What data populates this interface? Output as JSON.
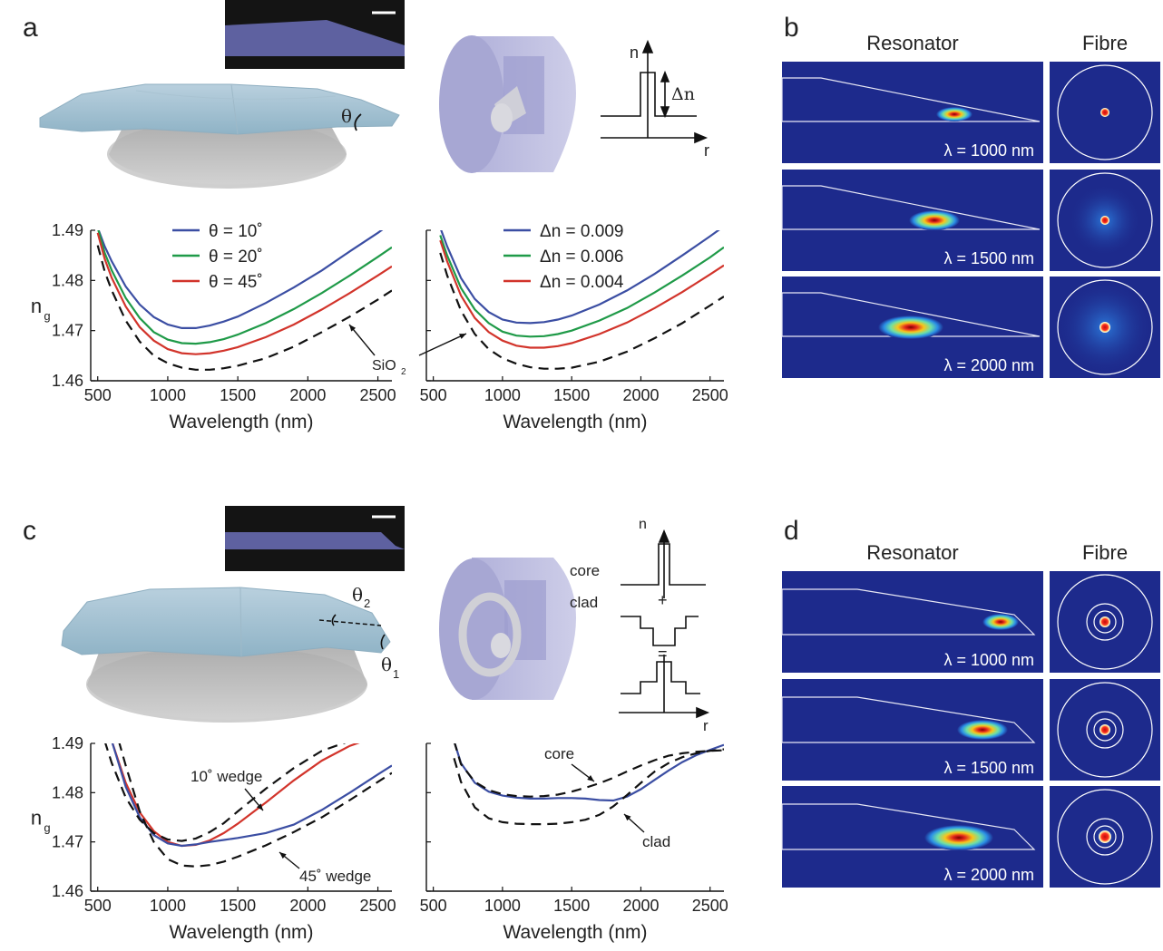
{
  "panels": {
    "a": "a",
    "b": "b",
    "c": "c",
    "d": "d"
  },
  "labels": {
    "theta": "θ",
    "theta2": "θ",
    "theta2_sub": "2",
    "theta1": "θ",
    "theta1_sub": "1",
    "n_axis": "n",
    "r_axis": "r",
    "delta_n": "Δn",
    "core": "core",
    "clad": "clad",
    "plus": "+",
    "equals": "=",
    "resonator": "Resonator",
    "fibre": "Fibre",
    "sio2": "SiO",
    "sio2_sub": "2",
    "wedge10": "10˚ wedge",
    "wedge45": "45˚ wedge",
    "core_curve": "core",
    "clad_curve": "clad",
    "ng": "n",
    "ng_sub": "g",
    "lambda": [
      "λ = 1000 nm",
      "λ = 1500 nm",
      "λ = 2000 nm"
    ]
  },
  "colors": {
    "blue": "#3b4ea3",
    "green": "#1f9a48",
    "red": "#d2342b",
    "mode_bg": "#1d2a8c"
  },
  "chart_data": [
    {
      "panel": "a-left",
      "type": "line",
      "xlabel": "Wavelength (nm)",
      "ylabel": "n_g",
      "xlim": [
        450,
        2600
      ],
      "ylim": [
        1.46,
        1.49
      ],
      "xticks": [
        500,
        1000,
        1500,
        2000,
        2500
      ],
      "yticks": [
        1.46,
        1.47,
        1.48,
        1.49
      ],
      "series": [
        {
          "name": "θ = 10˚",
          "color": "#3b4ea3",
          "dash": false,
          "x": [
            500,
            550,
            600,
            700,
            800,
            900,
            1000,
            1100,
            1200,
            1300,
            1400,
            1500,
            1700,
            1900,
            2100,
            2300,
            2500,
            2600
          ],
          "y": [
            1.4905,
            1.4868,
            1.4838,
            1.4788,
            1.4752,
            1.4727,
            1.4712,
            1.4705,
            1.4705,
            1.471,
            1.4718,
            1.4728,
            1.4755,
            1.4786,
            1.482,
            1.4858,
            1.4895,
            1.4915
          ]
        },
        {
          "name": "θ = 20˚",
          "color": "#1f9a48",
          "dash": false,
          "x": [
            500,
            550,
            600,
            700,
            800,
            900,
            1000,
            1100,
            1200,
            1300,
            1400,
            1500,
            1700,
            1900,
            2100,
            2300,
            2500,
            2600
          ],
          "y": [
            1.4905,
            1.4855,
            1.482,
            1.4765,
            1.4725,
            1.4697,
            1.4682,
            1.4675,
            1.4674,
            1.4677,
            1.4683,
            1.4692,
            1.4715,
            1.4743,
            1.4775,
            1.481,
            1.4847,
            1.4866
          ]
        },
        {
          "name": "θ = 45˚",
          "color": "#d2342b",
          "dash": false,
          "x": [
            500,
            550,
            600,
            700,
            800,
            900,
            1000,
            1100,
            1200,
            1300,
            1400,
            1500,
            1700,
            1900,
            2100,
            2300,
            2500,
            2600
          ],
          "y": [
            1.4895,
            1.4843,
            1.4805,
            1.4748,
            1.4707,
            1.468,
            1.4663,
            1.4655,
            1.4653,
            1.4655,
            1.466,
            1.4667,
            1.4687,
            1.4712,
            1.4742,
            1.4775,
            1.481,
            1.4828
          ]
        },
        {
          "name": "",
          "color": "#111111",
          "dash": true,
          "x": [
            500,
            550,
            600,
            700,
            800,
            900,
            1000,
            1100,
            1200,
            1300,
            1400,
            1500,
            1700,
            1900,
            2100,
            2300,
            2500,
            2600
          ],
          "y": [
            1.487,
            1.4818,
            1.478,
            1.472,
            1.4678,
            1.465,
            1.4635,
            1.4626,
            1.4622,
            1.4622,
            1.4625,
            1.463,
            1.4645,
            1.4668,
            1.4697,
            1.4728,
            1.4762,
            1.478
          ]
        }
      ],
      "legend_position": "top-left"
    },
    {
      "panel": "a-right",
      "type": "line",
      "xlabel": "Wavelength (nm)",
      "ylabel": "",
      "xlim": [
        450,
        2600
      ],
      "ylim": [
        1.46,
        1.49
      ],
      "xticks": [
        500,
        1000,
        1500,
        2000,
        2500
      ],
      "series": [
        {
          "name": "Δn = 0.009",
          "color": "#3b4ea3",
          "dash": false,
          "x": [
            550,
            600,
            700,
            800,
            900,
            1000,
            1100,
            1200,
            1300,
            1400,
            1500,
            1700,
            1900,
            2100,
            2300,
            2500,
            2600
          ],
          "y": [
            1.4905,
            1.4868,
            1.4805,
            1.4763,
            1.4737,
            1.4722,
            1.4716,
            1.4715,
            1.4717,
            1.4722,
            1.473,
            1.4752,
            1.478,
            1.4813,
            1.485,
            1.4888,
            1.4908
          ]
        },
        {
          "name": "Δn = 0.006",
          "color": "#1f9a48",
          "dash": false,
          "x": [
            550,
            600,
            700,
            800,
            900,
            1000,
            1100,
            1200,
            1300,
            1400,
            1500,
            1700,
            1900,
            2100,
            2300,
            2500,
            2600
          ],
          "y": [
            1.489,
            1.485,
            1.4785,
            1.4742,
            1.4715,
            1.4698,
            1.469,
            1.4688,
            1.4689,
            1.4693,
            1.47,
            1.472,
            1.4745,
            1.4776,
            1.481,
            1.4846,
            1.4866
          ]
        },
        {
          "name": "Δn = 0.004",
          "color": "#d2342b",
          "dash": false,
          "x": [
            550,
            600,
            700,
            800,
            900,
            1000,
            1100,
            1200,
            1300,
            1400,
            1500,
            1700,
            1900,
            2100,
            2300,
            2500,
            2600
          ],
          "y": [
            1.488,
            1.4838,
            1.477,
            1.4725,
            1.4697,
            1.468,
            1.467,
            1.4666,
            1.4666,
            1.4669,
            1.4675,
            1.4693,
            1.4716,
            1.4745,
            1.4777,
            1.4812,
            1.483
          ]
        },
        {
          "name": "",
          "color": "#111111",
          "dash": true,
          "x": [
            550,
            600,
            700,
            800,
            900,
            1000,
            1100,
            1200,
            1300,
            1400,
            1500,
            1700,
            1900,
            2100,
            2300,
            2500,
            2600
          ],
          "y": [
            1.4855,
            1.481,
            1.474,
            1.4693,
            1.4663,
            1.4645,
            1.4634,
            1.4627,
            1.4624,
            1.4624,
            1.4626,
            1.4638,
            1.4658,
            1.4685,
            1.4715,
            1.475,
            1.4768
          ]
        }
      ],
      "legend_position": "top-right"
    },
    {
      "panel": "c-left",
      "type": "line",
      "xlabel": "Wavelength (nm)",
      "ylabel": "n_g",
      "xlim": [
        450,
        2600
      ],
      "ylim": [
        1.46,
        1.49
      ],
      "xticks": [
        500,
        1000,
        1500,
        2000,
        2500
      ],
      "yticks": [
        1.46,
        1.47,
        1.48,
        1.49
      ],
      "series": [
        {
          "name": "10˚ wedge",
          "color": "#d2342b",
          "dash": false,
          "x": [
            600,
            700,
            800,
            900,
            1000,
            1100,
            1200,
            1300,
            1400,
            1500,
            1700,
            1900,
            2100,
            2300,
            2500,
            2600
          ],
          "y": [
            1.4905,
            1.482,
            1.476,
            1.4722,
            1.47,
            1.4692,
            1.4694,
            1.4703,
            1.4718,
            1.4737,
            1.478,
            1.4825,
            1.4865,
            1.4895,
            1.4915,
            1.492
          ]
        },
        {
          "name": "45˚ wedge",
          "color": "#3b4ea3",
          "dash": false,
          "x": [
            600,
            700,
            800,
            900,
            1000,
            1100,
            1200,
            1300,
            1400,
            1500,
            1700,
            1900,
            2100,
            2300,
            2500,
            2600
          ],
          "y": [
            1.4905,
            1.4812,
            1.475,
            1.4714,
            1.4697,
            1.4692,
            1.4695,
            1.47,
            1.4704,
            1.4708,
            1.4718,
            1.4735,
            1.4765,
            1.48,
            1.4837,
            1.4855
          ]
        },
        {
          "name": "",
          "color": "#111111",
          "dash": true,
          "x": [
            550,
            600,
            700,
            800,
            900,
            1000,
            1100,
            1200,
            1300,
            1400,
            1500,
            1700,
            1900,
            2100,
            2300,
            2500,
            2600
          ],
          "y": [
            1.4905,
            1.486,
            1.479,
            1.4745,
            1.4718,
            1.4705,
            1.4702,
            1.4707,
            1.472,
            1.4738,
            1.4762,
            1.4808,
            1.485,
            1.4885,
            1.4905,
            1.4918,
            1.492
          ]
        },
        {
          "name": "",
          "color": "#111111",
          "dash": true,
          "x": [
            650,
            700,
            800,
            900,
            1000,
            1100,
            1200,
            1300,
            1400,
            1500,
            1700,
            1900,
            2100,
            2300,
            2500,
            2600
          ],
          "y": [
            1.4905,
            1.4855,
            1.4762,
            1.47,
            1.4665,
            1.4652,
            1.465,
            1.4653,
            1.466,
            1.467,
            1.4693,
            1.472,
            1.475,
            1.4785,
            1.4822,
            1.484
          ]
        }
      ]
    },
    {
      "panel": "c-right",
      "type": "line",
      "xlabel": "Wavelength (nm)",
      "ylabel": "",
      "xlim": [
        450,
        2600
      ],
      "ylim": [
        1.46,
        1.49
      ],
      "xticks": [
        500,
        1000,
        1500,
        2000,
        2500
      ],
      "series": [
        {
          "name": "",
          "color": "#3b4ea3",
          "dash": false,
          "x": [
            650,
            700,
            800,
            900,
            1000,
            1100,
            1200,
            1300,
            1400,
            1500,
            1600,
            1700,
            1800,
            1900,
            2000,
            2100,
            2200,
            2300,
            2400,
            2500,
            2600
          ],
          "y": [
            1.4905,
            1.486,
            1.482,
            1.4802,
            1.4794,
            1.479,
            1.4788,
            1.4788,
            1.4789,
            1.4789,
            1.4788,
            1.4785,
            1.4784,
            1.4792,
            1.4807,
            1.4826,
            1.4845,
            1.4862,
            1.4876,
            1.4887,
            1.4897
          ]
        },
        {
          "name": "core",
          "color": "#111111",
          "dash": true,
          "x": [
            650,
            700,
            800,
            900,
            1000,
            1100,
            1200,
            1300,
            1400,
            1500,
            1600,
            1700,
            1800,
            1900,
            2000,
            2100,
            2200,
            2300,
            2400,
            2500,
            2600
          ],
          "y": [
            1.4905,
            1.4858,
            1.4822,
            1.4805,
            1.4797,
            1.4793,
            1.4792,
            1.4793,
            1.4796,
            1.4802,
            1.481,
            1.4819,
            1.483,
            1.4843,
            1.4855,
            1.4866,
            1.4875,
            1.488,
            1.4883,
            1.4885,
            1.4886
          ]
        },
        {
          "name": "clad",
          "color": "#111111",
          "dash": true,
          "x": [
            650,
            700,
            800,
            900,
            1000,
            1100,
            1200,
            1300,
            1400,
            1500,
            1600,
            1700,
            1800,
            1900,
            2000,
            2100,
            2200,
            2300,
            2400,
            2500,
            2600
          ],
          "y": [
            1.487,
            1.4822,
            1.477,
            1.4748,
            1.474,
            1.4737,
            1.4736,
            1.4736,
            1.4737,
            1.474,
            1.4745,
            1.4755,
            1.4772,
            1.4795,
            1.482,
            1.4843,
            1.486,
            1.4872,
            1.488,
            1.4885,
            1.4888
          ]
        }
      ]
    }
  ]
}
